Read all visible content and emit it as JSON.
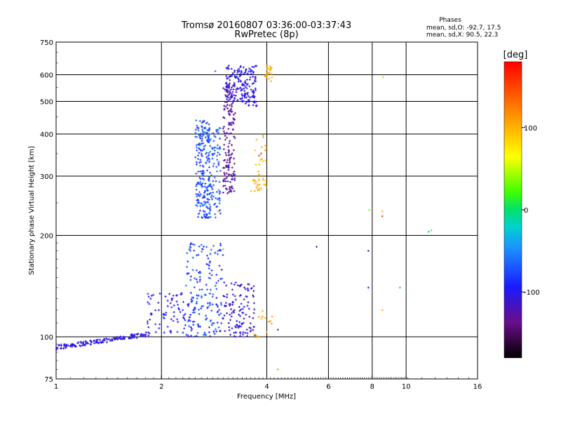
{
  "chart_data": {
    "type": "scatter",
    "title": "Tromsø 20160807 03:36:00-03:37:43",
    "subtitle": "RwPretec (8p)",
    "xlabel": "Frequency [MHz]",
    "ylabel": "Stationary phase Virtual Height [km]",
    "x_scale": "log",
    "y_scale": "log",
    "xlim": [
      1,
      16
    ],
    "ylim": [
      75,
      750
    ],
    "x_ticks": [
      1,
      2,
      4,
      6,
      8,
      10,
      16
    ],
    "x_tick_labels": [
      "1",
      "2",
      "4",
      "6",
      "8",
      "10",
      "16"
    ],
    "y_ticks": [
      75,
      100,
      200,
      300,
      400,
      500,
      600,
      750
    ],
    "y_tick_labels": [
      "75",
      "100",
      "200",
      "300",
      "400",
      "500",
      "600",
      "750"
    ],
    "grid": true,
    "stats": {
      "heading": "Phases",
      "line_o": "mean, sd,O: -92.7, 17.5",
      "line_x": "mean, sd,X:  90.5, 22.3"
    },
    "colorbar": {
      "label": "[deg]",
      "min": -180,
      "max": 180,
      "ticks": [
        100,
        0,
        -100
      ],
      "tick_labels": [
        "100",
        "0",
        "-100"
      ]
    },
    "regions": [
      {
        "f": [
          1.0,
          1.85
        ],
        "h": [
          93,
          102
        ],
        "phase": [
          -115,
          -90
        ],
        "n": 150,
        "trend": "rise"
      },
      {
        "f": [
          1.8,
          2.5
        ],
        "h": [
          100,
          135
        ],
        "phase": [
          -110,
          -80
        ],
        "n": 90
      },
      {
        "f": [
          2.35,
          3.0
        ],
        "h": [
          100,
          190
        ],
        "phase": [
          -95,
          -60
        ],
        "n": 170
      },
      {
        "f": [
          3.0,
          3.7
        ],
        "h": [
          103,
          145
        ],
        "phase": [
          -120,
          -95
        ],
        "n": 90
      },
      {
        "f": [
          3.1,
          3.75
        ],
        "h": [
          100,
          110
        ],
        "phase": [
          -110,
          -90
        ],
        "n": 30
      },
      {
        "f": [
          3.6,
          4.2
        ],
        "h": [
          100,
          120
        ],
        "phase": [
          95,
          115
        ],
        "n": 14
      },
      {
        "f": [
          2.5,
          2.75
        ],
        "h": [
          225,
          440
        ],
        "phase": [
          -90,
          -55
        ],
        "n": 200
      },
      {
        "f": [
          2.7,
          2.95
        ],
        "h": [
          225,
          420
        ],
        "phase": [
          -85,
          -55
        ],
        "n": 110
      },
      {
        "f": [
          3.0,
          3.25
        ],
        "h": [
          265,
          560
        ],
        "phase": [
          -150,
          -110
        ],
        "n": 160
      },
      {
        "f": [
          3.05,
          3.35
        ],
        "h": [
          500,
          640
        ],
        "phase": [
          -110,
          -95
        ],
        "n": 70
      },
      {
        "f": [
          3.35,
          3.75
        ],
        "h": [
          480,
          640
        ],
        "phase": [
          -110,
          -95
        ],
        "n": 110
      },
      {
        "f": [
          3.6,
          4.0
        ],
        "h": [
          270,
          310
        ],
        "phase": [
          90,
          110
        ],
        "n": 28
      },
      {
        "f": [
          3.7,
          4.0
        ],
        "h": [
          320,
          400
        ],
        "phase": [
          90,
          112
        ],
        "n": 14
      },
      {
        "f": [
          3.95,
          4.15
        ],
        "h": [
          570,
          640
        ],
        "phase": [
          95,
          115
        ],
        "n": 22
      }
    ],
    "isolated_points": [
      {
        "x": 5.55,
        "y": 185,
        "phase": -110
      },
      {
        "x": 7.8,
        "y": 180,
        "phase": -110
      },
      {
        "x": 7.8,
        "y": 140,
        "phase": -100
      },
      {
        "x": 7.85,
        "y": 238,
        "phase": 40
      },
      {
        "x": 8.55,
        "y": 236,
        "phase": 100
      },
      {
        "x": 8.55,
        "y": 228,
        "phase": 150
      },
      {
        "x": 8.55,
        "y": 120,
        "phase": 100
      },
      {
        "x": 8.6,
        "y": 590,
        "phase": 40
      },
      {
        "x": 9.6,
        "y": 140,
        "phase": -30
      },
      {
        "x": 11.6,
        "y": 205,
        "phase": -25
      },
      {
        "x": 11.8,
        "y": 207,
        "phase": 25
      },
      {
        "x": 4.3,
        "y": 105,
        "phase": -110
      },
      {
        "x": 4.3,
        "y": 80,
        "phase": 110
      },
      {
        "x": 2.85,
        "y": 615,
        "phase": -60
      },
      {
        "x": 2.9,
        "y": 236,
        "phase": 100
      },
      {
        "x": 3.0,
        "y": 182,
        "phase": 110
      },
      {
        "x": 3.8,
        "y": 345,
        "phase": 150
      },
      {
        "x": 3.85,
        "y": 350,
        "phase": 160
      }
    ]
  }
}
